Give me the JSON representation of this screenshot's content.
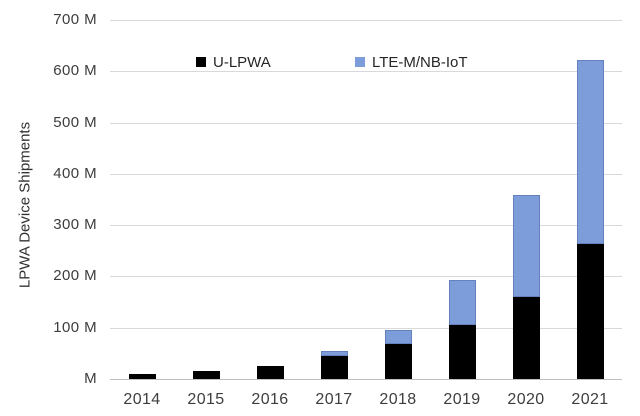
{
  "chart_data": {
    "type": "bar",
    "stacked": true,
    "title": "",
    "xlabel": "",
    "ylabel": "LPWA Device Shipments",
    "categories": [
      "2014",
      "2015",
      "2016",
      "2017",
      "2018",
      "2019",
      "2020",
      "2021"
    ],
    "series": [
      {
        "name": "U-LPWA",
        "color": "#000000",
        "values": [
          10,
          16,
          26,
          45,
          68,
          105,
          160,
          264
        ]
      },
      {
        "name": "LTE-M/NB-IoT",
        "color": "#7c9dd9",
        "values": [
          0,
          0,
          0,
          10,
          28,
          88,
          198,
          359
        ]
      }
    ],
    "totals": [
      10,
      16,
      26,
      55,
      96,
      193,
      358,
      623
    ],
    "ylim": [
      0,
      700
    ],
    "ytick_step": 100,
    "ytick_labels": [
      "M",
      "100 M",
      "200 M",
      "300 M",
      "400 M",
      "500 M",
      "600 M",
      "700 M"
    ],
    "grid": true,
    "grid_color": "#d9d9d9",
    "axis_line_color": "#bfbfbf",
    "tick_text_color": "#3d3d3d",
    "legend_position": "top-inside",
    "legend_entries": [
      "U-LPWA",
      "LTE-M/NB-IoT"
    ]
  }
}
